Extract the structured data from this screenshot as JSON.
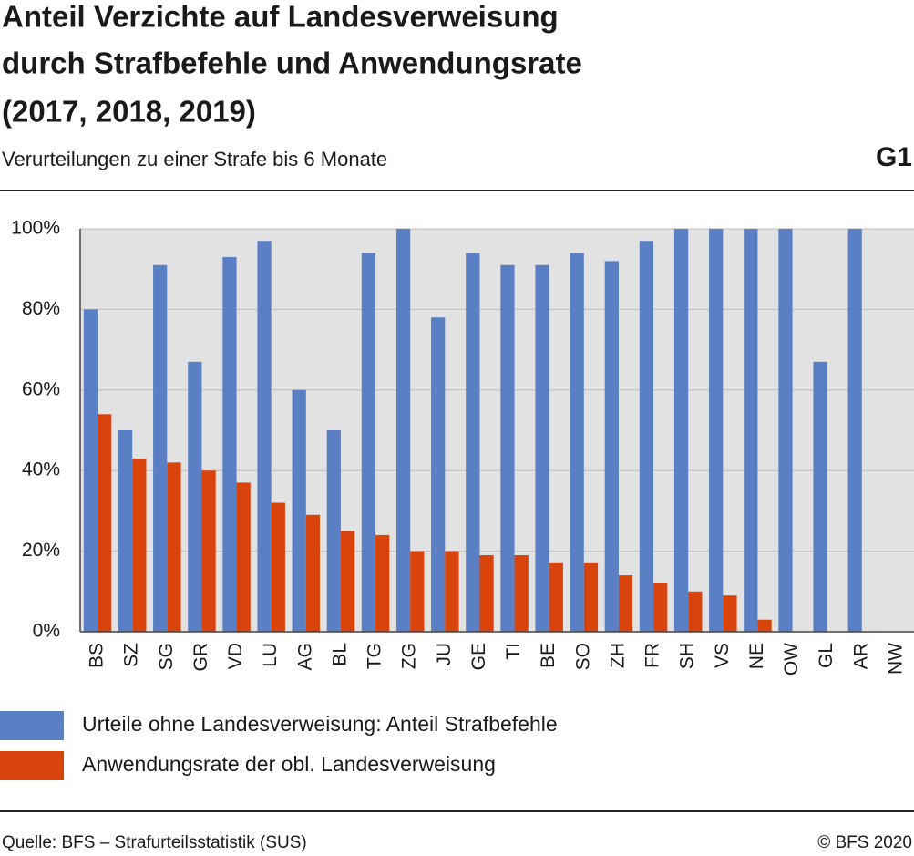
{
  "chart_data": {
    "type": "bar",
    "title": [
      "Anteil Verzichte auf Landesverweisung",
      "durch Strafbefehle und Anwendungsrate",
      "(2017, 2018, 2019)"
    ],
    "subtitle": "Verurteilungen zu einer Strafe bis 6 Monate",
    "chart_id": "G1",
    "source": "Quelle: BFS – Strafurteilsstatistik (SUS)",
    "copyright": "© BFS 2020",
    "categories": [
      "BS",
      "SZ",
      "SG",
      "GR",
      "VD",
      "LU",
      "AG",
      "BL",
      "TG",
      "ZG",
      "JU",
      "GE",
      "TI",
      "BE",
      "SO",
      "ZH",
      "FR",
      "SH",
      "VS",
      "NE",
      "OW",
      "GL",
      "AR",
      "NW"
    ],
    "series": [
      {
        "name": "Urteile ohne Landesverweisung: Anteil Strafbefehle",
        "color": "#5b7fc4",
        "values": [
          80,
          50,
          91,
          67,
          93,
          97,
          60,
          50,
          94,
          100,
          78,
          94,
          91,
          91,
          94,
          92,
          97,
          100,
          100,
          100,
          100,
          67,
          100,
          null
        ]
      },
      {
        "name": "Anwendungsrate der obl. Landesverweisung",
        "color": "#d9440c",
        "values": [
          54,
          43,
          42,
          40,
          37,
          32,
          29,
          25,
          24,
          20,
          20,
          19,
          19,
          17,
          17,
          14,
          12,
          10,
          9,
          3,
          null,
          null,
          null,
          null
        ]
      }
    ],
    "ylim": [
      0,
      100
    ],
    "yticks": [
      {
        "value": 0,
        "label": "0%"
      },
      {
        "value": 20,
        "label": "20%"
      },
      {
        "value": 40,
        "label": "40%"
      },
      {
        "value": 60,
        "label": "60%"
      },
      {
        "value": 80,
        "label": "80%"
      },
      {
        "value": 100,
        "label": "100%"
      }
    ],
    "grid": true
  }
}
